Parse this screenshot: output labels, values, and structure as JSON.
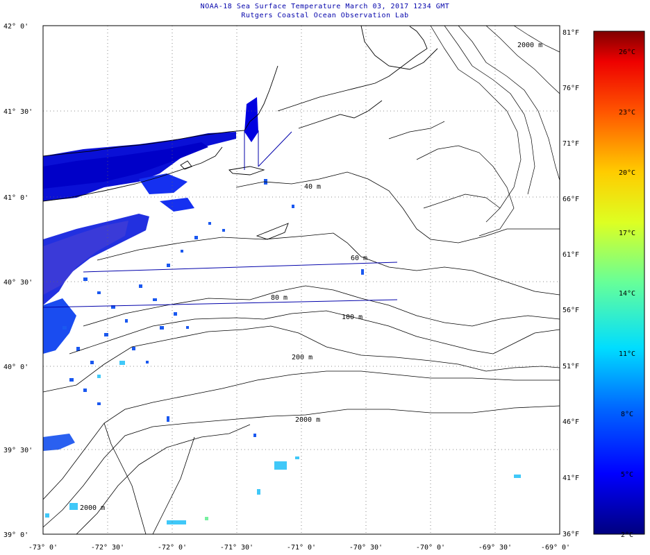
{
  "header": {
    "title": "NOAA-18 Sea Surface Temperature March 03, 2017 1234 GMT",
    "subtitle": "Rutgers Coastal Ocean Observation Lab"
  },
  "axes": {
    "lat_labels": [
      "42° 0'",
      "41° 30'",
      "41° 0'",
      "40° 30'",
      "40° 0'",
      "39° 30'",
      "39° 0'"
    ],
    "lon_labels": [
      "-73° 0'",
      "-72° 30'",
      "-72° 0'",
      "-71° 30'",
      "-71° 0'",
      "-70° 30'",
      "-70° 0'",
      "-69° 30'",
      "-69° 0'"
    ],
    "fahrenheit_labels": [
      "81°F",
      "76°F",
      "71°F",
      "66°F",
      "61°F",
      "56°F",
      "51°F",
      "46°F",
      "41°F",
      "36°F"
    ],
    "celsius_labels": [
      "26°C",
      "23°C",
      "20°C",
      "17°C",
      "14°C",
      "11°C",
      "8°C",
      "5°C",
      "2°C"
    ]
  },
  "contours": {
    "labels": [
      "40 m",
      "60 m",
      "80 m",
      "100 m",
      "200 m",
      "2000 m",
      "2000 m",
      "2000 m"
    ]
  },
  "colorbar": {
    "min_c": 2,
    "max_c": 27,
    "colors": [
      "#00007f",
      "#0000ff",
      "#007fff",
      "#00ffff",
      "#7fff7f",
      "#ffff00",
      "#ff7f00",
      "#ff0000",
      "#7f0000"
    ]
  }
}
